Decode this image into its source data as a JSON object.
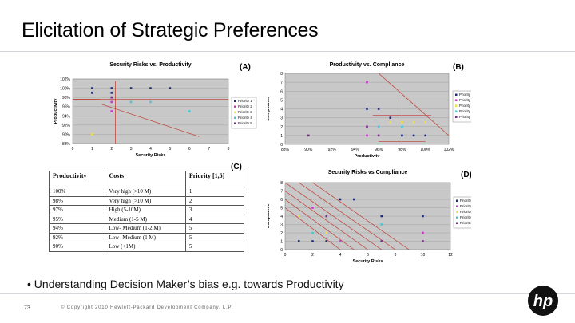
{
  "slide": {
    "title": "Elicitation of Strategic Preferences",
    "bullet": "• Understanding Decision Maker’s bias e.g. towards Productivity",
    "slide_number": "73",
    "copyright": "© Copyright 2010 Hewlett-Packard Development Company, L.P."
  },
  "colors": {
    "priority1": "#1f2a7a",
    "priority2": "#cc33cc",
    "priority3": "#f0e040",
    "priority4": "#44c8d8",
    "priority5": "#7a2b8a",
    "ref_line": "#c0392b",
    "plot_bg": "#c8c8c8"
  },
  "chart_data": [
    {
      "type": "scatter",
      "panel": "(A)",
      "title": "Security Risks vs. Productivity",
      "xlabel": "Security Risks",
      "ylabel": "Productivity",
      "xlim": [
        0,
        8
      ],
      "ylim": [
        88,
        102
      ],
      "xticks": [
        "0",
        "1",
        "2",
        "3",
        "4",
        "5",
        "6",
        "7",
        "8"
      ],
      "yticks": [
        "88%",
        "90%",
        "92%",
        "94%",
        "96%",
        "98%",
        "100%",
        "102%"
      ],
      "legend": [
        "Priority 1",
        "Priority 2",
        "Priority 3",
        "Priority 4",
        "Priority 5"
      ],
      "series": [
        {
          "name": "Priority 1",
          "x": [
            1,
            2,
            3,
            4,
            5,
            1,
            2
          ],
          "y": [
            100,
            100,
            100,
            100,
            100,
            99,
            99
          ]
        },
        {
          "name": "Priority 2",
          "x": [
            2,
            2,
            2
          ],
          "y": [
            98,
            97,
            95
          ]
        },
        {
          "name": "Priority 3",
          "x": [
            1
          ],
          "y": [
            90
          ]
        },
        {
          "name": "Priority 4",
          "x": [
            3,
            4,
            6
          ],
          "y": [
            97,
            97,
            95
          ]
        },
        {
          "name": "Priority 5",
          "x": [
            2
          ],
          "y": [
            98
          ]
        }
      ]
    },
    {
      "type": "scatter",
      "panel": "(B)",
      "title": "Productivity vs. Compliance",
      "xlabel": "Productivity",
      "ylabel": "Compliance",
      "xlim": [
        88,
        102
      ],
      "ylim": [
        0,
        8
      ],
      "xticks": [
        "88%",
        "90%",
        "92%",
        "94%",
        "96%",
        "98%",
        "100%",
        "102%"
      ],
      "yticks": [
        "0",
        "1",
        "2",
        "3",
        "4",
        "5",
        "6",
        "7",
        "8"
      ],
      "legend": [
        "Priority 1",
        "Priority 2",
        "Priority 3",
        "Priority 4",
        "Priority 5"
      ],
      "series": [
        {
          "name": "Priority 1",
          "x": [
            95,
            96,
            97,
            98,
            99,
            100
          ],
          "y": [
            4,
            4,
            3,
            1,
            1,
            1
          ]
        },
        {
          "name": "Priority 2",
          "x": [
            95,
            95
          ],
          "y": [
            7,
            1
          ]
        },
        {
          "name": "Priority 3",
          "x": [
            97,
            98,
            99,
            100
          ],
          "y": [
            2.5,
            2.5,
            2.5,
            2.5
          ]
        },
        {
          "name": "Priority 4",
          "x": [
            96,
            98
          ],
          "y": [
            2,
            2
          ]
        },
        {
          "name": "Priority 5",
          "x": [
            90,
            95,
            96
          ],
          "y": [
            1,
            2,
            1
          ]
        }
      ]
    },
    {
      "type": "table",
      "panel": "(C)",
      "columns": [
        "Productivity",
        "Costs",
        "Priority [1,5]"
      ],
      "rows": [
        [
          "100%",
          "Very high (>10 M)",
          "1"
        ],
        [
          "98%",
          "Very high (>10 M)",
          "2"
        ],
        [
          "97%",
          "High (5-10M)",
          "3"
        ],
        [
          "95%",
          "Medium (1-5 M)",
          "4"
        ],
        [
          "94%",
          "Low- Medium (1-2 M)",
          "5"
        ],
        [
          "92%",
          "Low- Medium (1 M)",
          "5"
        ],
        [
          "90%",
          "Low (<1M)",
          "5"
        ]
      ]
    },
    {
      "type": "scatter",
      "panel": "(D)",
      "title": "Security Risks vs Compliance",
      "xlabel": "Security Risks",
      "ylabel": "Compliance",
      "xlim": [
        0,
        12
      ],
      "ylim": [
        0,
        8
      ],
      "xticks": [
        "0",
        "2",
        "4",
        "6",
        "8",
        "10",
        "12"
      ],
      "yticks": [
        "0",
        "1",
        "2",
        "3",
        "4",
        "5",
        "6",
        "7",
        "8"
      ],
      "legend": [
        "Priority 1",
        "Priority 2",
        "Priority 3",
        "Priority 4",
        "Priority 5"
      ],
      "series": [
        {
          "name": "Priority 1",
          "x": [
            4,
            5,
            1,
            2,
            3,
            7,
            10
          ],
          "y": [
            6,
            6,
            1,
            1,
            1,
            4,
            4
          ]
        },
        {
          "name": "Priority 2",
          "x": [
            2,
            4,
            10
          ],
          "y": [
            5,
            1,
            2
          ]
        },
        {
          "name": "Priority 3",
          "x": [
            1,
            3
          ],
          "y": [
            4,
            2
          ]
        },
        {
          "name": "Priority 4",
          "x": [
            2,
            7
          ],
          "y": [
            2,
            3
          ]
        },
        {
          "name": "Priority 5",
          "x": [
            3,
            7,
            10
          ],
          "y": [
            4,
            1,
            1
          ]
        }
      ]
    }
  ]
}
